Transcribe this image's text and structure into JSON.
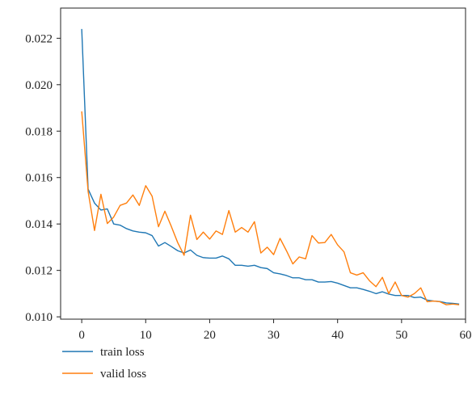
{
  "chart_data": {
    "type": "line",
    "title": "",
    "xlabel": "",
    "ylabel": "",
    "xlim": [
      -3.3,
      60
    ],
    "ylim": [
      0.0099,
      0.0233
    ],
    "x_ticks": [
      0,
      10,
      20,
      30,
      40,
      50,
      60
    ],
    "x_tick_labels": [
      "0",
      "10",
      "20",
      "30",
      "40",
      "50",
      "60"
    ],
    "y_ticks": [
      0.01,
      0.012,
      0.014,
      0.016,
      0.018,
      0.02,
      0.022
    ],
    "y_tick_labels": [
      "0.010",
      "0.012",
      "0.014",
      "0.016",
      "0.018",
      "0.020",
      "0.022"
    ],
    "grid": false,
    "legend_position": "bottom-left, below plot",
    "x": [
      0,
      1,
      2,
      3,
      4,
      5,
      6,
      7,
      8,
      9,
      10,
      11,
      12,
      13,
      14,
      15,
      16,
      17,
      18,
      19,
      20,
      21,
      22,
      23,
      24,
      25,
      26,
      27,
      28,
      29,
      30,
      31,
      32,
      33,
      34,
      35,
      36,
      37,
      38,
      39,
      40,
      41,
      42,
      43,
      44,
      45,
      46,
      47,
      48,
      49,
      50,
      51,
      52,
      53,
      54,
      55,
      56,
      57,
      58,
      59
    ],
    "series": [
      {
        "name": "train loss",
        "color": "#1f77b4",
        "values": [
          0.0224,
          0.0155,
          0.0149,
          0.0146,
          0.01465,
          0.014,
          0.01395,
          0.0138,
          0.0137,
          0.01365,
          0.01362,
          0.0135,
          0.01305,
          0.0132,
          0.01303,
          0.01285,
          0.01275,
          0.01288,
          0.01265,
          0.01255,
          0.01253,
          0.01253,
          0.01262,
          0.0125,
          0.01222,
          0.01222,
          0.01218,
          0.01222,
          0.01212,
          0.01208,
          0.0119,
          0.01185,
          0.01178,
          0.01168,
          0.01168,
          0.0116,
          0.0116,
          0.0115,
          0.0115,
          0.01152,
          0.01145,
          0.01135,
          0.01125,
          0.01125,
          0.01118,
          0.0111,
          0.011,
          0.01108,
          0.01098,
          0.01092,
          0.01092,
          0.01092,
          0.01083,
          0.01085,
          0.01072,
          0.01068,
          0.01066,
          0.0106,
          0.01058,
          0.01055
        ]
      },
      {
        "name": "valid loss",
        "color": "#ff7f0e",
        "values": [
          0.01885,
          0.0154,
          0.01372,
          0.01528,
          0.01402,
          0.0143,
          0.0148,
          0.0149,
          0.01525,
          0.0148,
          0.01565,
          0.0152,
          0.01388,
          0.01455,
          0.0139,
          0.0132,
          0.01265,
          0.01438,
          0.01333,
          0.01365,
          0.01335,
          0.0137,
          0.01355,
          0.01458,
          0.01365,
          0.01385,
          0.01365,
          0.0141,
          0.01275,
          0.013,
          0.01268,
          0.01338,
          0.01285,
          0.01228,
          0.01258,
          0.0125,
          0.0135,
          0.01318,
          0.0132,
          0.01355,
          0.0131,
          0.0128,
          0.0119,
          0.0118,
          0.0119,
          0.01155,
          0.0113,
          0.0117,
          0.011,
          0.0115,
          0.01092,
          0.01085,
          0.011,
          0.01125,
          0.01065,
          0.01068,
          0.01065,
          0.01052,
          0.01055,
          0.01052
        ]
      }
    ]
  }
}
